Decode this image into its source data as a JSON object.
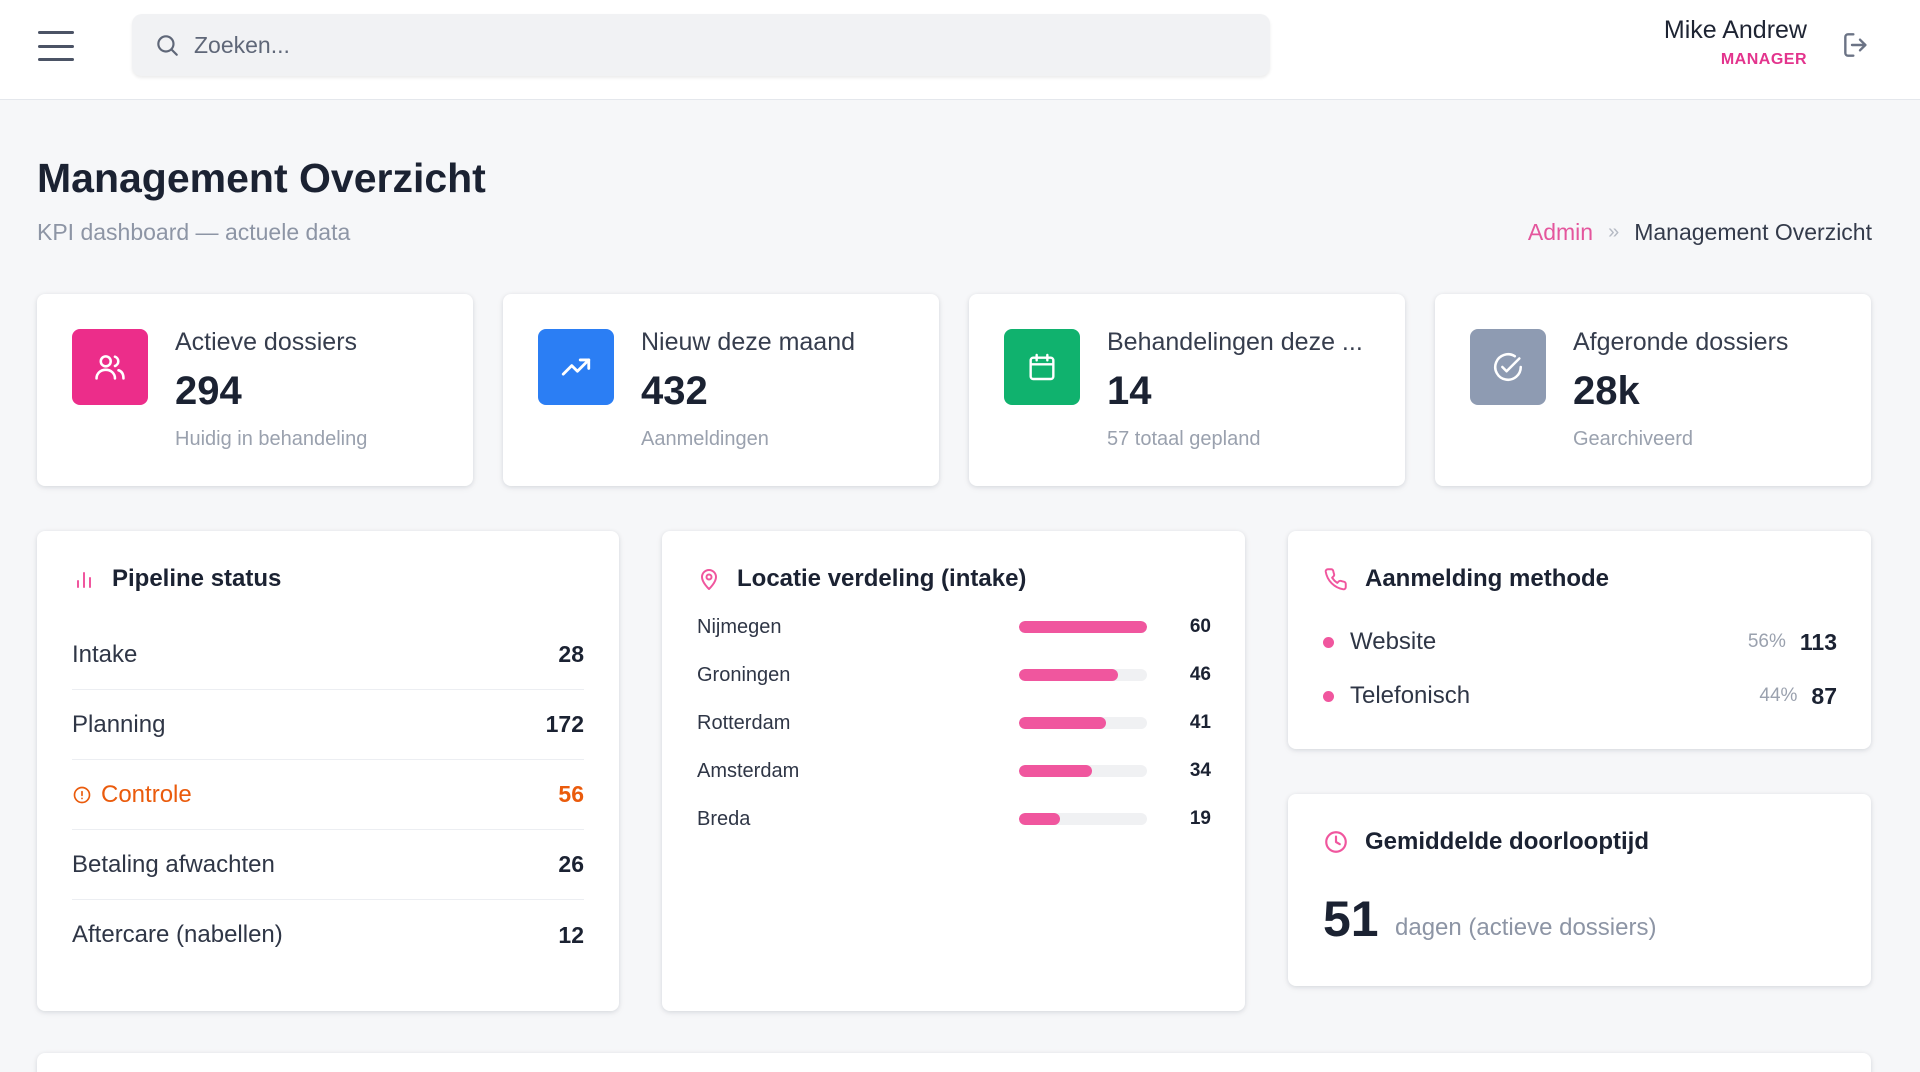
{
  "topbar": {
    "search_placeholder": "Zoeken...",
    "user_name": "Mike Andrew",
    "user_role": "MANAGER"
  },
  "header": {
    "title": "Management Overzicht",
    "subtitle": "KPI dashboard — actuele data",
    "breadcrumb": {
      "root": "Admin",
      "separator": "»",
      "current": "Management Overzicht"
    }
  },
  "kpis": [
    {
      "label": "Actieve dossiers",
      "value": "294",
      "sub": "Huidig in behandeling",
      "icon": "users-icon",
      "color": "#ec2d8a"
    },
    {
      "label": "Nieuw deze maand",
      "value": "432",
      "sub": "Aanmeldingen",
      "icon": "trending-up-icon",
      "color": "#2b7ef4"
    },
    {
      "label": "Behandelingen deze ...",
      "value": "14",
      "sub": "57 totaal gepland",
      "icon": "calendar-icon",
      "color": "#10b26e"
    },
    {
      "label": "Afgeronde dossiers",
      "value": "28k",
      "sub": "Gearchiveerd",
      "icon": "check-circle-icon",
      "color": "#8e9bb2"
    }
  ],
  "pipeline": {
    "title": "Pipeline status",
    "rows": [
      {
        "label": "Intake",
        "value": "28"
      },
      {
        "label": "Planning",
        "value": "172"
      },
      {
        "label": "Controle",
        "value": "56",
        "warning": true
      },
      {
        "label": "Betaling afwachten",
        "value": "26"
      },
      {
        "label": "Aftercare (nabellen)",
        "value": "12"
      }
    ]
  },
  "locations": {
    "title": "Locatie verdeling (intake)",
    "rows": [
      {
        "name": "Nijmegen",
        "value": "60",
        "fraction": 1.0
      },
      {
        "name": "Groningen",
        "value": "46",
        "fraction": 0.77
      },
      {
        "name": "Rotterdam",
        "value": "41",
        "fraction": 0.68
      },
      {
        "name": "Amsterdam",
        "value": "34",
        "fraction": 0.57
      },
      {
        "name": "Breda",
        "value": "19",
        "fraction": 0.32
      }
    ]
  },
  "method": {
    "title": "Aanmelding methode",
    "rows": [
      {
        "name": "Website",
        "pct": "56%",
        "value": "113"
      },
      {
        "name": "Telefonisch",
        "pct": "44%",
        "value": "87"
      }
    ]
  },
  "lead_time": {
    "title": "Gemiddelde doorlooptijd",
    "value": "51",
    "text": "dagen (actieve dossiers)"
  },
  "colors": {
    "accent": "#e3348d",
    "bar": "#f0569e",
    "warning": "#ea5b0c"
  }
}
